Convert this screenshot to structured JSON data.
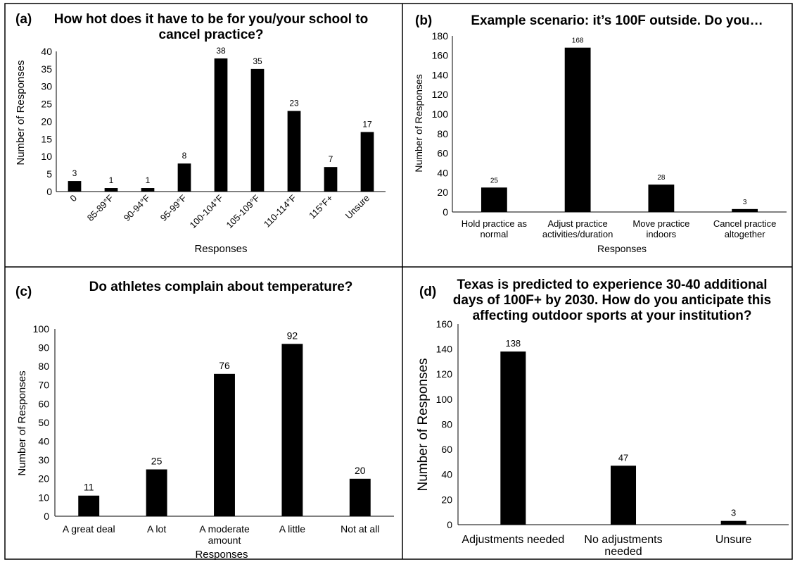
{
  "colors": {
    "bar": "#000000",
    "axis": "#000000",
    "border": "#000000",
    "background": "#ffffff"
  },
  "chart_data": [
    {
      "type": "bar",
      "panel": "(a)",
      "title": "How hot does it have to be for you/your school to cancel practice?",
      "title_lines": [
        "How hot does it have to be for you/your school to",
        "cancel practice?"
      ],
      "xlabel": "Responses",
      "ylabel": "Number of Responses",
      "categories": [
        "0",
        "85-89°F",
        "90-94°F",
        "95-99°F",
        "100-104°F",
        "105-109°F",
        "110-114°F",
        "115°F+",
        "Unsure"
      ],
      "values": [
        3,
        1,
        1,
        8,
        38,
        35,
        23,
        7,
        17
      ],
      "data_labels": [
        "3",
        "1",
        "1",
        "8",
        "38",
        "35",
        "23",
        "7",
        "17"
      ],
      "ylim": [
        0,
        40
      ],
      "yticks": [
        0,
        5,
        10,
        15,
        20,
        25,
        30,
        35,
        40
      ],
      "grid": false
    },
    {
      "type": "bar",
      "panel": "(b)",
      "title": "Example scenario: it’s 100F outside. Do you…",
      "title_lines": [
        "Example scenario: it’s 100F outside. Do you…"
      ],
      "xlabel": "Responses",
      "ylabel": "Number of Responses",
      "categories": [
        "Hold practice as normal",
        "Adjust practice activities/duration",
        "Move practice indoors",
        "Cancel practice altogether"
      ],
      "category_lines": [
        [
          "Hold practice as",
          "normal"
        ],
        [
          "Adjust practice",
          "activities/duration"
        ],
        [
          "Move practice",
          "indoors"
        ],
        [
          "Cancel practice",
          "altogether"
        ]
      ],
      "values": [
        25,
        168,
        28,
        3
      ],
      "data_labels": [
        "25",
        "168",
        "28",
        "3"
      ],
      "ylim": [
        0,
        180
      ],
      "yticks": [
        0,
        20,
        40,
        60,
        80,
        100,
        120,
        140,
        160,
        180
      ],
      "grid": false
    },
    {
      "type": "bar",
      "panel": "(c)",
      "title": "Do athletes complain about temperature?",
      "title_lines": [
        "Do athletes complain about temperature?"
      ],
      "xlabel": "Responses",
      "ylabel": "Number of Responses",
      "categories": [
        "A great deal",
        "A lot",
        "A moderate amount",
        "A little",
        "Not at all"
      ],
      "category_lines": [
        [
          "A great deal"
        ],
        [
          "A lot"
        ],
        [
          "A moderate",
          "amount"
        ],
        [
          "A little"
        ],
        [
          "Not at all"
        ]
      ],
      "values": [
        11,
        25,
        76,
        92,
        20
      ],
      "data_labels": [
        "11",
        "25",
        "76",
        "92",
        "20"
      ],
      "ylim": [
        0,
        100
      ],
      "yticks": [
        0,
        10,
        20,
        30,
        40,
        50,
        60,
        70,
        80,
        90,
        100
      ],
      "grid": false
    },
    {
      "type": "bar",
      "panel": "(d)",
      "title": "Texas is predicted to experience 30-40 additional days of 100F+ by 2030. How do you anticipate this affecting outdoor sports at your institution?",
      "title_lines": [
        "Texas is predicted to experience 30-40 additional",
        "days of 100F+ by 2030. How do you anticipate this",
        "affecting outdoor sports at your institution?"
      ],
      "xlabel": "",
      "ylabel": "Number of Responses",
      "categories": [
        "Adjustments needed",
        "No adjustments needed",
        "Unsure"
      ],
      "category_lines": [
        [
          "Adjustments needed"
        ],
        [
          "No adjustments",
          "needed"
        ],
        [
          "Unsure"
        ]
      ],
      "values": [
        138,
        47,
        3
      ],
      "data_labels": [
        "138",
        "47",
        "3"
      ],
      "ylim": [
        0,
        160
      ],
      "yticks": [
        0,
        20,
        40,
        60,
        80,
        100,
        120,
        140,
        160
      ],
      "grid": false
    }
  ]
}
